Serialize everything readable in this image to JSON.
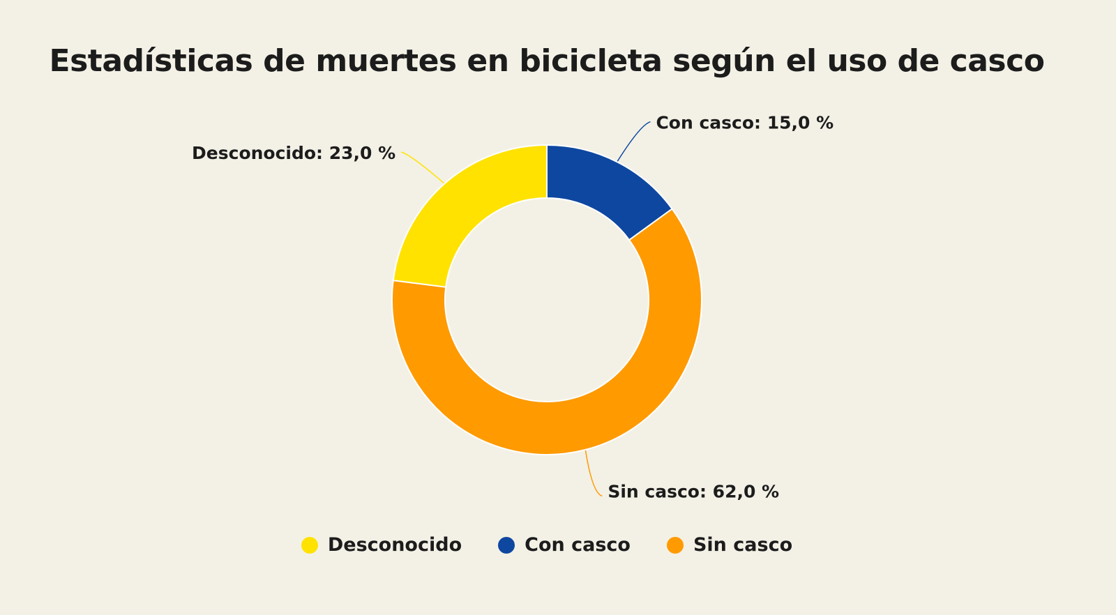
{
  "chart_data": {
    "type": "pie",
    "donut": true,
    "title": "Estadísticas de muertes en bicicleta según el uso de casco",
    "slices": [
      {
        "name": "Con casco",
        "value": 15.0,
        "label": "Con casco: 15,0 %",
        "color": "#0E47A0"
      },
      {
        "name": "Sin casco",
        "value": 62.0,
        "label": "Sin casco: 62,0 %",
        "color": "#FF9A00"
      },
      {
        "name": "Desconocido",
        "value": 23.0,
        "label": "Desconocido: 23,0 %",
        "color": "#FFE200"
      }
    ],
    "legend": {
      "placement": "bottom",
      "order": [
        "Desconocido",
        "Con casco",
        "Sin casco"
      ]
    }
  },
  "colors": {
    "background": "#F3F1E6"
  }
}
